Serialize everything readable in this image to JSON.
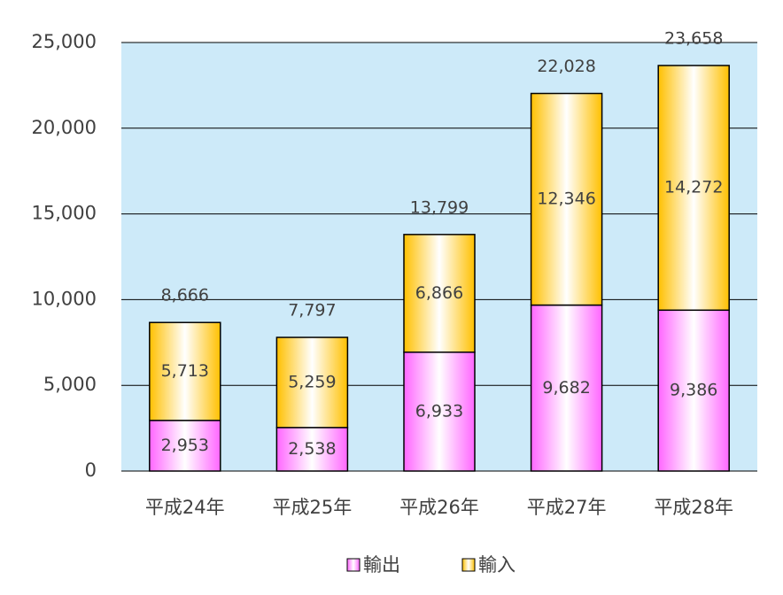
{
  "chart_data": {
    "type": "stacked-bar",
    "categories": [
      "平成24年",
      "平成25年",
      "平成26年",
      "平成27年",
      "平成28年"
    ],
    "series": [
      {
        "name": "輸出",
        "color": "#ff66ff",
        "values": [
          2953,
          2538,
          6933,
          9682,
          9386
        ],
        "value_labels": [
          "2,953",
          "2,538",
          "6,933",
          "9,682",
          "9,386"
        ]
      },
      {
        "name": "輸入",
        "color": "#ffc000",
        "values": [
          5713,
          5259,
          6866,
          12346,
          14272
        ],
        "value_labels": [
          "5,713",
          "5,259",
          "6,866",
          "12,346",
          "14,272"
        ]
      }
    ],
    "totals": [
      8666,
      7797,
      13799,
      22028,
      23658
    ],
    "total_labels": [
      "8,666",
      "7,797",
      "13,799",
      "22,028",
      "23,658"
    ],
    "ylim": [
      0,
      25000
    ],
    "yticks": [
      0,
      {
        "value": 5000,
        "label": "5,000"
      },
      {
        "value": 10000,
        "label": "10,000"
      },
      {
        "value": 15000,
        "label": "15,000"
      },
      {
        "value": 20000,
        "label": "20,000"
      },
      {
        "value": 25000,
        "label": "25,000"
      }
    ],
    "grid": true,
    "legend": "bottom",
    "plot_background": "#cdeaf9"
  }
}
